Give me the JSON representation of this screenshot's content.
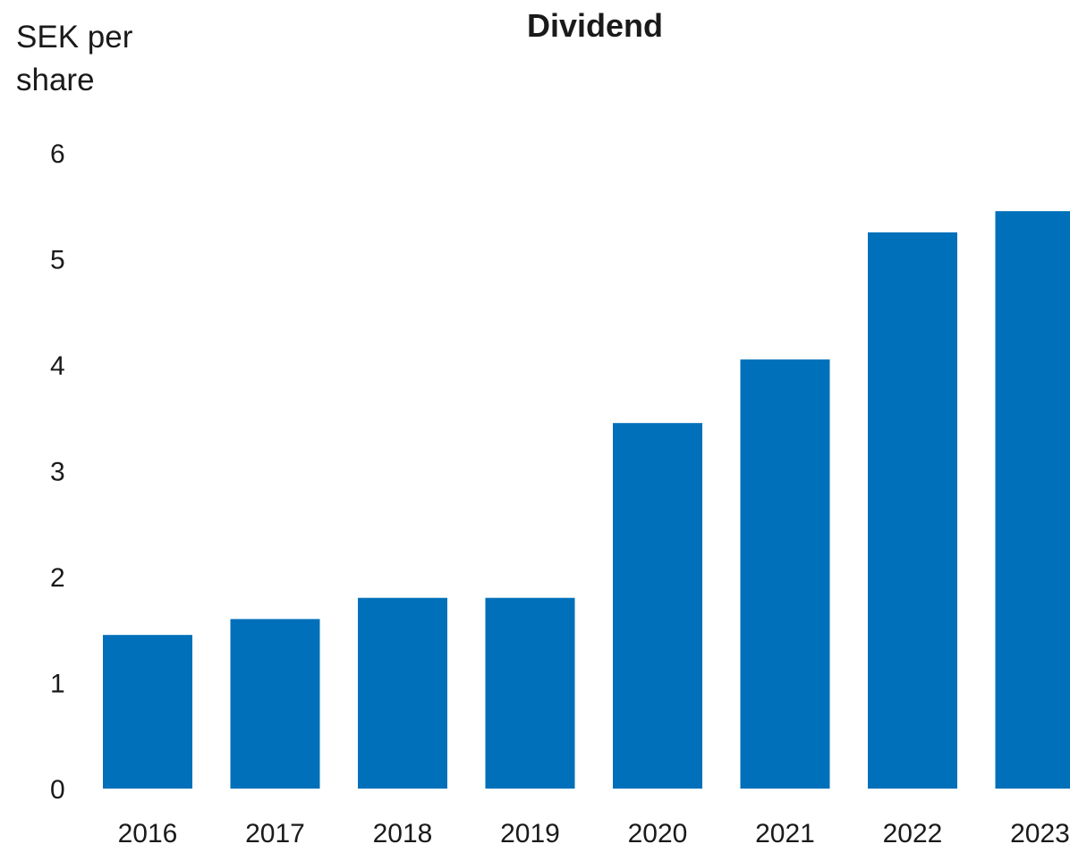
{
  "chart_data": {
    "type": "bar",
    "title": "Dividend",
    "ylabel": "SEK per share",
    "xlabel": "",
    "categories": [
      "2016",
      "2017",
      "2018",
      "2019",
      "2020",
      "2021",
      "2022",
      "2023"
    ],
    "values": [
      1.45,
      1.6,
      1.8,
      1.8,
      3.45,
      4.05,
      5.25,
      5.45
    ],
    "yticks": [
      "0",
      "1",
      "2",
      "3",
      "4",
      "5",
      "6"
    ],
    "ylim": [
      0,
      6
    ],
    "grid": false,
    "legend": "none",
    "bar_color": "#0070BA"
  }
}
